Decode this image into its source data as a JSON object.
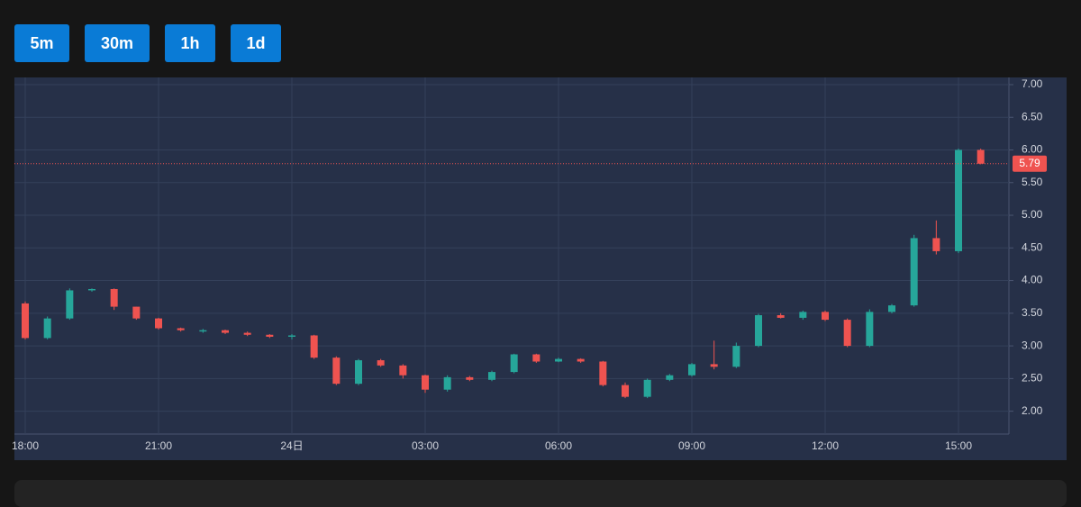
{
  "buttons": [
    "5m",
    "30m",
    "1h",
    "1d"
  ],
  "chart_data": {
    "type": "candlestick",
    "x": [
      "18:00",
      "18:30",
      "19:00",
      "19:30",
      "20:00",
      "20:30",
      "21:00",
      "21:30",
      "22:00",
      "22:30",
      "23:00",
      "23:30",
      "00:00",
      "00:30",
      "01:00",
      "01:30",
      "02:00",
      "02:30",
      "03:00",
      "03:30",
      "04:00",
      "04:30",
      "05:00",
      "05:30",
      "06:00",
      "06:30",
      "07:00",
      "07:30",
      "08:00",
      "08:30",
      "09:00",
      "09:30",
      "10:00",
      "10:30",
      "11:00",
      "11:30",
      "12:00",
      "12:30",
      "13:00",
      "13:30",
      "14:00",
      "14:30",
      "15:00",
      "15:30"
    ],
    "open": [
      3.65,
      3.12,
      3.42,
      3.85,
      3.87,
      3.6,
      3.42,
      3.27,
      3.22,
      3.24,
      3.2,
      3.17,
      3.14,
      3.16,
      2.82,
      2.42,
      2.78,
      2.7,
      2.55,
      2.33,
      2.52,
      2.48,
      2.6,
      2.87,
      2.76,
      2.8,
      2.76,
      2.4,
      2.22,
      2.48,
      2.55,
      2.72,
      2.68,
      3.0,
      3.47,
      3.43,
      3.52,
      3.4,
      3.0,
      3.52,
      3.62,
      4.65,
      4.45,
      6.0
    ],
    "high": [
      3.68,
      3.45,
      3.88,
      3.88,
      3.88,
      3.6,
      3.43,
      3.28,
      3.26,
      3.25,
      3.22,
      3.18,
      3.18,
      3.17,
      2.84,
      2.8,
      2.8,
      2.72,
      2.56,
      2.55,
      2.54,
      2.62,
      2.88,
      2.88,
      2.82,
      2.81,
      2.77,
      2.44,
      2.5,
      2.57,
      2.74,
      3.08,
      3.05,
      3.49,
      3.5,
      3.54,
      3.54,
      3.42,
      3.56,
      3.64,
      4.7,
      4.92,
      6.02,
      6.02
    ],
    "low": [
      3.1,
      3.1,
      3.4,
      3.83,
      3.55,
      3.4,
      3.25,
      3.22,
      3.2,
      3.18,
      3.15,
      3.12,
      3.1,
      2.8,
      2.4,
      2.4,
      2.68,
      2.5,
      2.28,
      2.3,
      2.46,
      2.46,
      2.58,
      2.74,
      2.75,
      2.74,
      2.38,
      2.2,
      2.2,
      2.46,
      2.53,
      2.64,
      2.66,
      2.98,
      3.42,
      3.4,
      3.38,
      2.98,
      2.98,
      3.5,
      3.6,
      4.4,
      4.42,
      5.78
    ],
    "close": [
      3.12,
      3.42,
      3.85,
      3.87,
      3.6,
      3.42,
      3.27,
      3.24,
      3.24,
      3.2,
      3.17,
      3.14,
      3.16,
      2.82,
      2.42,
      2.78,
      2.7,
      2.55,
      2.33,
      2.52,
      2.48,
      2.6,
      2.87,
      2.76,
      2.8,
      2.76,
      2.4,
      2.22,
      2.48,
      2.55,
      2.72,
      2.68,
      3.0,
      3.47,
      3.43,
      3.52,
      3.4,
      3.0,
      3.52,
      3.62,
      4.65,
      4.45,
      6.0,
      5.79
    ],
    "up_color": "#26a69a",
    "down_color": "#ef5350",
    "xticks": [
      "18:00",
      "21:00",
      {
        "value": "00:00",
        "label": "24日"
      },
      "03:00",
      "06:00",
      "09:00",
      "12:00",
      "15:00"
    ],
    "ylim": [
      1.65,
      7.11
    ],
    "yticks": [
      {
        "value": 7,
        "label": "7.00"
      },
      {
        "value": 6.5,
        "label": "6.50"
      },
      {
        "value": 6,
        "label": "6.00"
      },
      {
        "value": 5.5,
        "label": "5.50"
      },
      {
        "value": 5,
        "label": "5.00"
      },
      {
        "value": 4.5,
        "label": "4.50"
      },
      {
        "value": 4,
        "label": "4.00"
      },
      {
        "value": 3.5,
        "label": "3.50"
      },
      {
        "value": 3,
        "label": "3.00"
      },
      {
        "value": 2.5,
        "label": "2.50"
      },
      {
        "value": 2,
        "label": "2.00"
      }
    ],
    "grid": true
  }
}
